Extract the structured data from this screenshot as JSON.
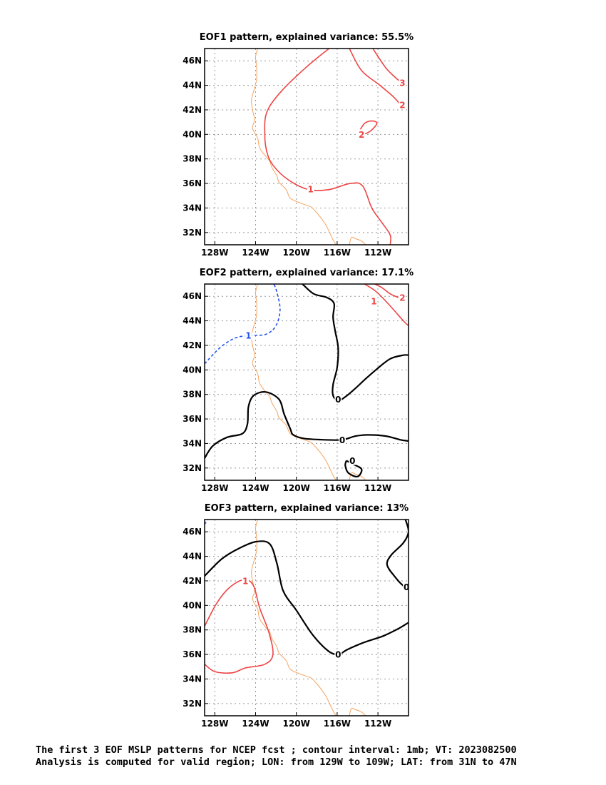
{
  "chart_data": [
    {
      "type": "contour",
      "title": "EOF1 pattern, explained variance: 55.5%",
      "x_ticks": [
        "128W",
        "124W",
        "120W",
        "116W",
        "112W"
      ],
      "y_ticks": [
        "32N",
        "34N",
        "36N",
        "38N",
        "40N",
        "42N",
        "44N",
        "46N"
      ],
      "xlim": [
        -129,
        -109
      ],
      "ylim": [
        31,
        47
      ],
      "grid": true,
      "contours": [
        {
          "value": 1,
          "label": "1",
          "style": "solid",
          "color": "#ee4444",
          "points": [
            [
              -116.8,
              47
            ],
            [
              -119,
              45.5
            ],
            [
              -121.5,
              43.5
            ],
            [
              -122.9,
              41.8
            ],
            [
              -123.1,
              40
            ],
            [
              -122.9,
              38.6
            ],
            [
              -122.3,
              37.5
            ],
            [
              -120.8,
              36.3
            ],
            [
              -118.8,
              35.5
            ],
            [
              -116.8,
              35.5
            ],
            [
              -114.7,
              36
            ],
            [
              -113.5,
              35.8
            ],
            [
              -112.6,
              34
            ],
            [
              -111.6,
              32.8
            ],
            [
              -110.8,
              31.8
            ],
            [
              -110.8,
              31
            ]
          ],
          "labels_at": [
            [
              -118.6,
              35.55
            ]
          ]
        },
        {
          "value": 2,
          "label": "2",
          "style": "solid",
          "color": "#ee4444",
          "points": [
            [
              -113.8,
              40.3
            ],
            [
              -113.3,
              40.9
            ],
            [
              -112.6,
              41.1
            ],
            [
              -112.1,
              40.9
            ],
            [
              -112.7,
              40.3
            ],
            [
              -113.5,
              40.0
            ],
            [
              -113.8,
              40.3
            ]
          ],
          "labels_at": [
            [
              -113.6,
              40.0
            ]
          ]
        },
        {
          "value": 3,
          "label": "3",
          "style": "solid",
          "color": "#ee4444",
          "points": [
            [
              -112.5,
              47
            ],
            [
              -111.2,
              45.4
            ],
            [
              -110.1,
              44.5
            ],
            [
              -109.5,
              44.1
            ]
          ],
          "labels_at": [
            [
              -109.6,
              44.2
            ]
          ]
        },
        {
          "value": 2,
          "label": "2",
          "style": "solid",
          "color": "#ee4444",
          "points": [
            [
              -114.8,
              47
            ],
            [
              -113.6,
              45.2
            ],
            [
              -111.8,
              44.0
            ],
            [
              -110.4,
              43.0
            ],
            [
              -109.6,
              42.2
            ]
          ],
          "labels_at": [
            [
              -109.6,
              42.4
            ]
          ]
        }
      ]
    },
    {
      "type": "contour",
      "title": "EOF2 pattern, explained variance: 17.1%",
      "x_ticks": [
        "128W",
        "124W",
        "120W",
        "116W",
        "112W"
      ],
      "y_ticks": [
        "32N",
        "34N",
        "36N",
        "38N",
        "40N",
        "42N",
        "44N",
        "46N"
      ],
      "xlim": [
        -129,
        -109
      ],
      "ylim": [
        31,
        47
      ],
      "grid": true,
      "contours": [
        {
          "value": -1,
          "label": "1",
          "style": "dashed",
          "color": "#2255ee",
          "points": [
            [
              -129,
              40.5
            ],
            [
              -127.5,
              41.8
            ],
            [
              -126,
              42.6
            ],
            [
              -124.5,
              42.8
            ],
            [
              -123,
              42.9
            ],
            [
              -122,
              43.6
            ],
            [
              -121.6,
              44.9
            ],
            [
              -121.9,
              46.3
            ],
            [
              -122.2,
              47
            ]
          ],
          "labels_at": [
            [
              -124.7,
              42.8
            ]
          ]
        },
        {
          "value": 1,
          "label": "1",
          "style": "solid",
          "color": "#ee4444",
          "points": [
            [
              -113.3,
              47
            ],
            [
              -112.2,
              46.4
            ],
            [
              -111,
              45.4
            ],
            [
              -109.5,
              44.0
            ],
            [
              -109,
              43.6
            ]
          ],
          "labels_at": [
            [
              -112.4,
              45.6
            ]
          ]
        },
        {
          "value": 2,
          "label": "2",
          "style": "solid",
          "color": "#ee4444",
          "points": [
            [
              -112.3,
              47
            ],
            [
              -111.6,
              46.7
            ],
            [
              -110.8,
              46.2
            ],
            [
              -110,
              45.9
            ]
          ],
          "labels_at": [
            [
              -109.6,
              45.9
            ]
          ]
        },
        {
          "value": 0,
          "label": "0",
          "style": "solid",
          "color": "#000000",
          "points": [
            [
              -119.4,
              47
            ],
            [
              -118.3,
              46.2
            ],
            [
              -117,
              45.9
            ],
            [
              -116.3,
              45.4
            ],
            [
              -116.4,
              44.3
            ],
            [
              -116.2,
              43.2
            ],
            [
              -115.9,
              41.8
            ],
            [
              -116.0,
              40.2
            ],
            [
              -116.4,
              38.8
            ],
            [
              -116.4,
              37.9
            ],
            [
              -115.9,
              37.5
            ],
            [
              -115.2,
              37.8
            ],
            [
              -114.2,
              38.5
            ],
            [
              -113.3,
              39.2
            ],
            [
              -112.2,
              40.0
            ],
            [
              -110.8,
              40.9
            ],
            [
              -109.5,
              41.2
            ],
            [
              -109,
              41.2
            ]
          ],
          "labels_at": [
            [
              -115.9,
              37.6
            ]
          ]
        },
        {
          "value": 0,
          "label": "0",
          "style": "solid",
          "color": "#000000",
          "points": [
            [
              -129,
              32.8
            ],
            [
              -128.2,
              33.8
            ],
            [
              -126.8,
              34.5
            ],
            [
              -125.3,
              34.8
            ],
            [
              -124.8,
              35.6
            ],
            [
              -124.7,
              37.0
            ],
            [
              -124.2,
              37.9
            ],
            [
              -123.0,
              38.2
            ],
            [
              -121.7,
              37.6
            ],
            [
              -121.2,
              36.4
            ],
            [
              -120.6,
              35.2
            ],
            [
              -120.3,
              34.7
            ],
            [
              -119.2,
              34.4
            ],
            [
              -117.2,
              34.3
            ],
            [
              -115.5,
              34.3
            ],
            [
              -114.2,
              34.6
            ],
            [
              -113.0,
              34.7
            ],
            [
              -111.2,
              34.6
            ],
            [
              -109.8,
              34.3
            ],
            [
              -109,
              34.2
            ]
          ],
          "labels_at": [
            [
              -115.5,
              34.3
            ]
          ]
        },
        {
          "value": 0,
          "label": "0",
          "style": "solid",
          "color": "#000000",
          "points": [
            [
              -115.1,
              32.6
            ],
            [
              -114.4,
              32.3
            ],
            [
              -113.6,
              31.9
            ],
            [
              -114.0,
              31.3
            ],
            [
              -114.9,
              31.6
            ],
            [
              -115.2,
              32.2
            ],
            [
              -115.1,
              32.6
            ]
          ],
          "labels_at": [
            [
              -114.5,
              32.6
            ]
          ]
        }
      ]
    },
    {
      "type": "contour",
      "title": "EOF3 pattern, explained variance: 13%",
      "x_ticks": [
        "128W",
        "124W",
        "120W",
        "116W",
        "112W"
      ],
      "y_ticks": [
        "32N",
        "34N",
        "36N",
        "38N",
        "40N",
        "42N",
        "44N",
        "46N"
      ],
      "xlim": [
        -129,
        -109
      ],
      "ylim": [
        31,
        47
      ],
      "grid": true,
      "contours": [
        {
          "value": 1,
          "label": "1",
          "style": "solid",
          "color": "#ee4444",
          "points": [
            [
              -129,
              38.3
            ],
            [
              -127.8,
              40.2
            ],
            [
              -126.5,
              41.5
            ],
            [
              -125.1,
              42.1
            ],
            [
              -124.2,
              41.6
            ],
            [
              -123.6,
              39.8
            ],
            [
              -122.7,
              37.8
            ],
            [
              -122.3,
              36.0
            ],
            [
              -123.1,
              35.2
            ],
            [
              -125,
              34.9
            ],
            [
              -126.3,
              34.5
            ],
            [
              -128,
              34.6
            ],
            [
              -129,
              35.2
            ]
          ],
          "labels_at": [
            [
              -125.0,
              42.0
            ]
          ]
        },
        {
          "value": 0,
          "label": "0",
          "style": "solid",
          "color": "#000000",
          "points": [
            [
              -129,
              42.4
            ],
            [
              -127.3,
              43.8
            ],
            [
              -125.5,
              44.7
            ],
            [
              -123.9,
              45.2
            ],
            [
              -122.6,
              45.0
            ],
            [
              -121.9,
              43.4
            ],
            [
              -121.3,
              41.2
            ],
            [
              -120.0,
              39.6
            ],
            [
              -118.4,
              37.6
            ],
            [
              -116.9,
              36.3
            ],
            [
              -115.9,
              36.0
            ],
            [
              -115.0,
              36.4
            ],
            [
              -113.3,
              37.0
            ],
            [
              -111.5,
              37.5
            ],
            [
              -110.0,
              38.1
            ],
            [
              -109,
              38.6
            ]
          ],
          "labels_at": [
            [
              -115.9,
              36.0
            ]
          ]
        },
        {
          "value": 0,
          "label": "0",
          "style": "solid",
          "color": "#000000",
          "points": [
            [
              -109.3,
              47
            ],
            [
              -109.0,
              46.0
            ],
            [
              -109.5,
              45.1
            ],
            [
              -110.7,
              44.1
            ],
            [
              -111.1,
              43.3
            ],
            [
              -110.3,
              42.3
            ],
            [
              -109.5,
              41.6
            ],
            [
              -109,
              41.5
            ]
          ],
          "labels_at": [
            [
              -109.2,
              41.5
            ]
          ]
        },
        {
          "value": -1,
          "label": "",
          "style": "dashed",
          "color": "#2255ee",
          "points": [
            [
              -129,
              46.6
            ],
            [
              -128.7,
              47
            ]
          ],
          "labels_at": []
        }
      ]
    }
  ],
  "map": {
    "coastline_color": "#f4a460",
    "coastline": [
      [
        -123.8,
        47
      ],
      [
        -124.0,
        46.3
      ],
      [
        -123.9,
        45.5
      ],
      [
        -123.9,
        44.5
      ],
      [
        -124.1,
        43.8
      ],
      [
        -124.4,
        42.8
      ],
      [
        -124.3,
        42.0
      ],
      [
        -124.1,
        41.2
      ],
      [
        -124.3,
        40.5
      ],
      [
        -123.8,
        39.7
      ],
      [
        -123.6,
        38.9
      ],
      [
        -123.0,
        38.2
      ],
      [
        -122.6,
        37.8
      ],
      [
        -122.4,
        37.3
      ],
      [
        -121.9,
        36.6
      ],
      [
        -121.7,
        36.1
      ],
      [
        -121.0,
        35.5
      ],
      [
        -120.6,
        34.8
      ],
      [
        -119.6,
        34.4
      ],
      [
        -118.6,
        34.1
      ],
      [
        -118.2,
        33.8
      ],
      [
        -117.5,
        33.1
      ],
      [
        -117.1,
        32.6
      ],
      [
        -116.8,
        32.1
      ],
      [
        -116.4,
        31.4
      ],
      [
        -116.1,
        31
      ]
    ],
    "gulf_coast": [
      [
        -114.8,
        31
      ],
      [
        -114.6,
        31.6
      ],
      [
        -114.2,
        31.5
      ],
      [
        -113.6,
        31.3
      ],
      [
        -113.2,
        31
      ]
    ]
  },
  "caption": {
    "line1": "The first 3 EOF MSLP patterns for NCEP fcst ; contour interval: 1mb; VT: 2023082500",
    "line2": "Analysis is computed for valid region; LON: from 129W to 109W; LAT: from 31N to 47N"
  }
}
